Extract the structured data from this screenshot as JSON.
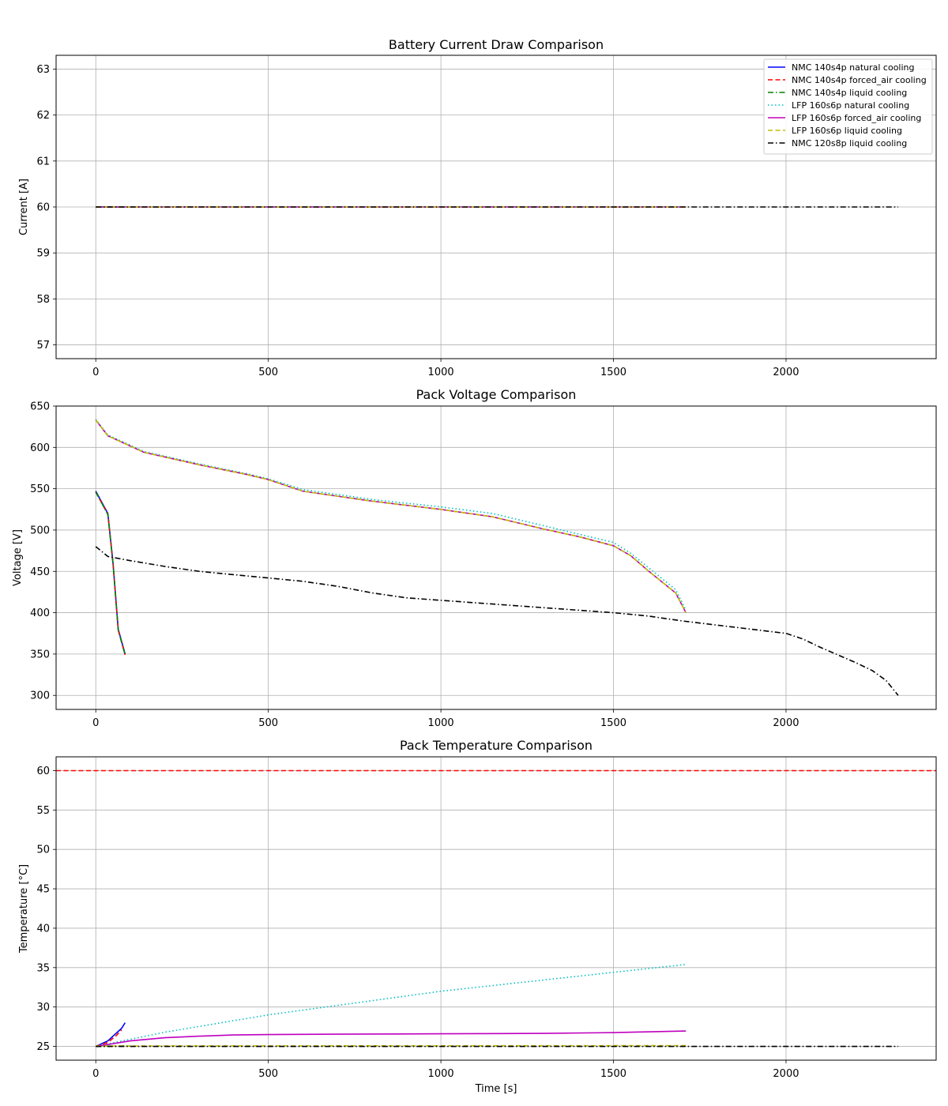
{
  "chart_data": [
    {
      "type": "line",
      "title": "Battery Current Draw Comparison",
      "xlabel": "",
      "ylabel": "Current [A]",
      "xlim": [
        -115,
        2435
      ],
      "ylim": [
        56.7,
        63.3
      ],
      "xticks": [
        0,
        500,
        1000,
        1500,
        2000
      ],
      "xtick_labels": [
        "0",
        "500",
        "1000",
        "1500",
        "2000"
      ],
      "yticks": [
        57,
        58,
        59,
        60,
        61,
        62,
        63
      ],
      "ytick_labels": [
        "57",
        "58",
        "59",
        "60",
        "61",
        "62",
        "63"
      ],
      "grid": true,
      "legend": "top-right",
      "series": [
        {
          "name": "NMC 140s4p natural cooling",
          "color": "#0000ff",
          "dash": "solid",
          "x": [
            0,
            85
          ],
          "y": [
            60,
            60
          ]
        },
        {
          "name": "NMC 140s4p forced_air cooling",
          "color": "#ff0000",
          "dash": "dashed",
          "x": [
            0,
            80
          ],
          "y": [
            60,
            60
          ]
        },
        {
          "name": "NMC 140s4p liquid cooling",
          "color": "#008000",
          "dash": "dashdot",
          "x": [
            0,
            85
          ],
          "y": [
            60,
            60
          ]
        },
        {
          "name": "LFP 160s6p natural cooling",
          "color": "#00bfbf",
          "dash": "dotted",
          "x": [
            0,
            1710
          ],
          "y": [
            60,
            60
          ]
        },
        {
          "name": "LFP 160s6p forced_air cooling",
          "color": "#bf00bf",
          "dash": "solid",
          "x": [
            0,
            1710
          ],
          "y": [
            60,
            60
          ]
        },
        {
          "name": "LFP 160s6p liquid cooling",
          "color": "#bfbf00",
          "dash": "dashed",
          "x": [
            0,
            1710
          ],
          "y": [
            60,
            60
          ]
        },
        {
          "name": "NMC 120s8p liquid cooling",
          "color": "#000000",
          "dash": "dashdot",
          "x": [
            0,
            2325
          ],
          "y": [
            60,
            60
          ]
        }
      ]
    },
    {
      "type": "line",
      "title": "Pack Voltage Comparison",
      "xlabel": "",
      "ylabel": "Voltage [V]",
      "xlim": [
        -115,
        2435
      ],
      "ylim": [
        283,
        650
      ],
      "xticks": [
        0,
        500,
        1000,
        1500,
        2000
      ],
      "xtick_labels": [
        "0",
        "500",
        "1000",
        "1500",
        "2000"
      ],
      "yticks": [
        300,
        350,
        400,
        450,
        500,
        550,
        600,
        650
      ],
      "ytick_labels": [
        "300",
        "350",
        "400",
        "450",
        "500",
        "550",
        "600",
        "650"
      ],
      "grid": true,
      "series": [
        {
          "name": "NMC 140s4p natural cooling",
          "color": "#0000ff",
          "dash": "solid",
          "x": [
            0,
            35,
            50,
            65,
            75,
            85
          ],
          "y": [
            547,
            520,
            460,
            380,
            365,
            350
          ]
        },
        {
          "name": "NMC 140s4p forced_air cooling",
          "color": "#ff0000",
          "dash": "dashed",
          "x": [
            0,
            35,
            50,
            65,
            75,
            85
          ],
          "y": [
            546,
            519,
            459,
            379,
            364,
            349
          ]
        },
        {
          "name": "NMC 140s4p liquid cooling",
          "color": "#008000",
          "dash": "dashdot",
          "x": [
            0,
            35,
            50,
            65,
            75,
            85
          ],
          "y": [
            546,
            519,
            459,
            379,
            364,
            349
          ]
        },
        {
          "name": "LFP 160s6p natural cooling",
          "color": "#00bfbf",
          "dash": "dotted",
          "x": [
            0,
            35,
            140,
            300,
            440,
            500,
            600,
            800,
            1000,
            1150,
            1300,
            1400,
            1500,
            1550,
            1600,
            1680,
            1710
          ],
          "y": [
            634,
            615,
            595,
            580,
            568,
            562,
            549,
            537,
            528,
            520,
            505,
            495,
            485,
            472,
            455,
            428,
            403
          ]
        },
        {
          "name": "LFP 160s6p forced_air cooling",
          "color": "#bf00bf",
          "dash": "solid",
          "x": [
            0,
            35,
            140,
            300,
            440,
            500,
            600,
            800,
            1000,
            1150,
            1300,
            1400,
            1500,
            1550,
            1600,
            1680,
            1710
          ],
          "y": [
            633,
            614,
            594,
            579,
            567,
            561,
            547,
            535,
            525,
            516,
            501,
            492,
            481,
            469,
            451,
            424,
            400
          ]
        },
        {
          "name": "LFP 160s6p liquid cooling",
          "color": "#bfbf00",
          "dash": "dashed",
          "x": [
            0,
            35,
            140,
            300,
            440,
            500,
            600,
            800,
            1000,
            1150,
            1300,
            1400,
            1500,
            1550,
            1600,
            1680,
            1710
          ],
          "y": [
            633,
            614,
            594,
            579,
            567,
            561,
            547,
            535,
            525,
            516,
            501,
            492,
            481,
            469,
            451,
            424,
            400
          ]
        },
        {
          "name": "NMC 120s8p liquid cooling",
          "color": "#000000",
          "dash": "dashdot",
          "x": [
            0,
            35,
            100,
            200,
            300,
            400,
            500,
            600,
            700,
            800,
            900,
            1000,
            1200,
            1400,
            1500,
            1600,
            1700,
            1800,
            1900,
            2000,
            2050,
            2100,
            2200,
            2250,
            2290,
            2325
          ],
          "y": [
            480,
            468,
            463,
            456,
            450,
            446,
            442,
            438,
            432,
            424,
            418,
            415,
            409,
            403,
            400,
            396,
            390,
            385,
            380,
            375,
            368,
            358,
            340,
            330,
            318,
            300
          ]
        }
      ]
    },
    {
      "type": "line",
      "title": "Pack Temperature Comparison",
      "xlabel": "Time [s]",
      "ylabel": "Temperature [°C]",
      "xlim": [
        -115,
        2435
      ],
      "ylim": [
        23.25,
        61.75
      ],
      "xticks": [
        0,
        500,
        1000,
        1500,
        2000
      ],
      "xtick_labels": [
        "0",
        "500",
        "1000",
        "1500",
        "2000"
      ],
      "yticks": [
        25,
        30,
        35,
        40,
        45,
        50,
        55,
        60
      ],
      "ytick_labels": [
        "25",
        "30",
        "35",
        "40",
        "45",
        "50",
        "55",
        "60"
      ],
      "grid": true,
      "reference_line": {
        "y": 60,
        "color": "#ff0000",
        "dash": "dashed"
      },
      "series": [
        {
          "name": "NMC 140s4p natural cooling",
          "color": "#0000ff",
          "dash": "solid",
          "x": [
            0,
            35,
            60,
            75,
            85
          ],
          "y": [
            25,
            25.7,
            26.7,
            27.3,
            28
          ]
        },
        {
          "name": "NMC 140s4p forced_air cooling",
          "color": "#ff0000",
          "dash": "dashed",
          "x": [
            0,
            35,
            60,
            75
          ],
          "y": [
            25,
            25.5,
            26.4,
            27.1
          ]
        },
        {
          "name": "NMC 140s4p liquid cooling",
          "color": "#008000",
          "dash": "dashdot",
          "x": [
            0,
            85
          ],
          "y": [
            25,
            25.05
          ]
        },
        {
          "name": "LFP 160s6p natural cooling",
          "color": "#00bfbf",
          "dash": "dotted",
          "x": [
            0,
            200,
            500,
            1000,
            1500,
            1710
          ],
          "y": [
            25,
            26.8,
            29,
            32,
            34.4,
            35.4
          ]
        },
        {
          "name": "LFP 160s6p forced_air cooling",
          "color": "#bf00bf",
          "dash": "solid",
          "x": [
            0,
            100,
            200,
            300,
            400,
            500,
            700,
            1000,
            1300,
            1500,
            1710
          ],
          "y": [
            25,
            25.7,
            26.1,
            26.3,
            26.45,
            26.5,
            26.55,
            26.6,
            26.65,
            26.75,
            26.95
          ]
        },
        {
          "name": "LFP 160s6p liquid cooling",
          "color": "#bfbf00",
          "dash": "dashed",
          "x": [
            0,
            1710
          ],
          "y": [
            25.05,
            25.1
          ]
        },
        {
          "name": "NMC 120s8p liquid cooling",
          "color": "#000000",
          "dash": "dashdot",
          "x": [
            0,
            2325
          ],
          "y": [
            25,
            25
          ]
        }
      ]
    }
  ]
}
